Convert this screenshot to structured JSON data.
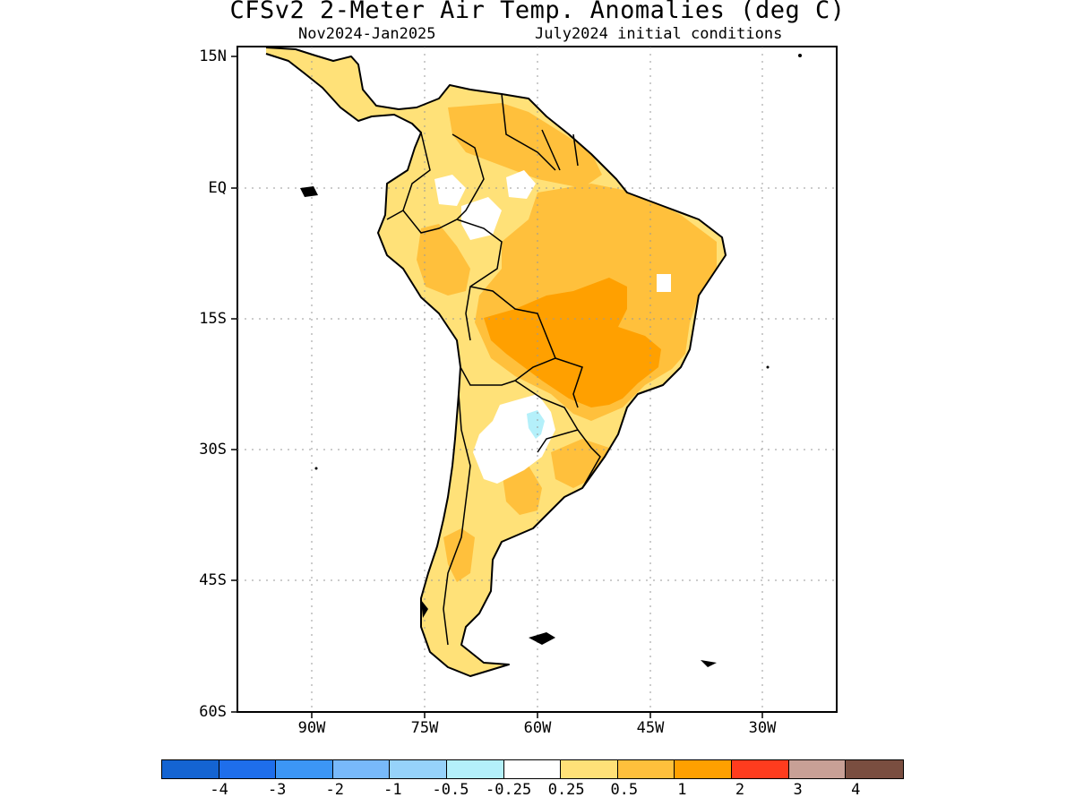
{
  "title": "CFSv2 2-Meter Air Temp. Anomalies (deg C)",
  "subtitle_period": "Nov2024-Jan2025",
  "subtitle_ic": "July2024 initial conditions",
  "lat_labels": [
    "15N",
    "EQ",
    "15S",
    "30S",
    "45S",
    "60S"
  ],
  "lon_labels": [
    "90W",
    "75W",
    "60W",
    "45W",
    "30W"
  ],
  "colorbar": {
    "colors": [
      "#1464d2",
      "#1e6eeb",
      "#3c96f5",
      "#78b9fa",
      "#96d2fa",
      "#b4f0fa",
      "#ffffff",
      "#ffe178",
      "#ffc03c",
      "#ffa000",
      "#ff3c1e",
      "#c8a096",
      "#7a4e40"
    ],
    "labels": [
      "-4",
      "-3",
      "-2",
      "-1",
      "-0.5",
      "-0.25",
      "0.25",
      "0.5",
      "1",
      "2",
      "3",
      "4"
    ]
  },
  "anomaly_colors": {
    "light_orange": "#ffe178",
    "orange": "#ffc03c",
    "dark_orange": "#ffa000",
    "light_blue": "#b4f0fa",
    "white": "#ffffff"
  }
}
